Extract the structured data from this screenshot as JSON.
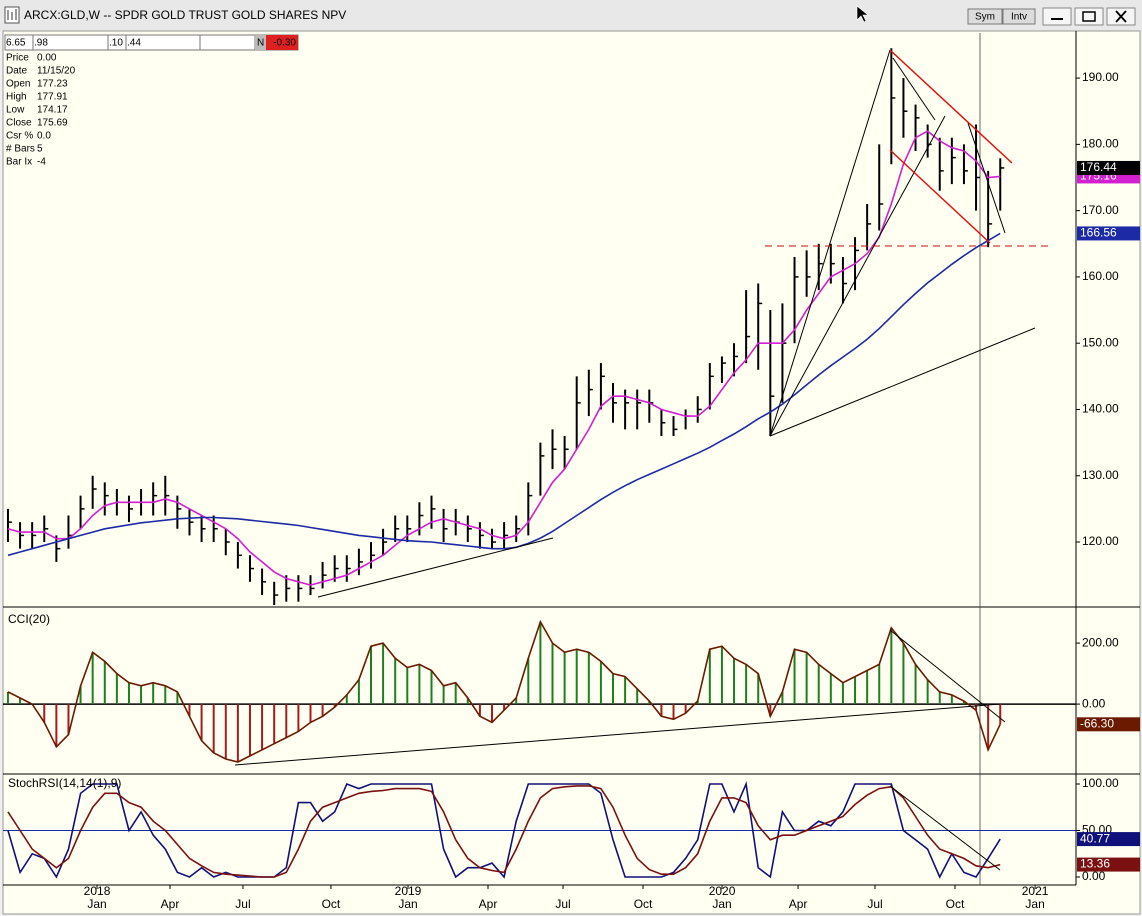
{
  "window": {
    "buttons": [
      "Sym",
      "Intv"
    ]
  },
  "data_box": {
    "cells": [
      "6.65",
      ".98",
      ".10",
      ".44"
    ],
    "flag": "N",
    "change": "-0.30",
    "rows": [
      [
        "Price",
        "0.00"
      ],
      [
        "Date",
        "11/15/20"
      ],
      [
        "Open",
        "177.23"
      ],
      [
        "High",
        "177.91"
      ],
      [
        "Low",
        "174.17"
      ],
      [
        "Close",
        "175.69"
      ],
      [
        "Csr %",
        "0.0"
      ],
      [
        "# Bars",
        "5"
      ],
      [
        "Bar Ix",
        "-4"
      ]
    ]
  },
  "chart_data": [
    {
      "type": "ohlc",
      "title": "ARCX:GLD,W -- SPDR GOLD TRUST GOLD SHARES NPV",
      "color": "#000000",
      "high": [
        125,
        123,
        123,
        124,
        121,
        124,
        127,
        130,
        129,
        128,
        127,
        128,
        129,
        130,
        127,
        125,
        124,
        124,
        122,
        120,
        118,
        116,
        114,
        115,
        115,
        115,
        117,
        118,
        118,
        119,
        120,
        122,
        124,
        124,
        126,
        127,
        125,
        125,
        124,
        123,
        122,
        123,
        124,
        129,
        135,
        137,
        136,
        145,
        146,
        147,
        144,
        143,
        143,
        143,
        140,
        139,
        140,
        142,
        147,
        148,
        150,
        158,
        159,
        155,
        156,
        163,
        164,
        165,
        165,
        163,
        166,
        171,
        180,
        194.5,
        190,
        186,
        183,
        181,
        181,
        180,
        183,
        176,
        177.9
      ],
      "low": [
        120,
        119,
        119,
        120,
        117,
        119,
        122,
        125,
        124,
        124,
        123,
        124,
        124,
        124,
        122,
        121,
        120,
        120,
        118,
        116,
        114,
        112,
        110.5,
        111,
        111,
        112,
        113,
        114,
        114,
        115,
        116,
        118,
        120,
        120,
        121,
        122,
        120,
        121,
        120,
        119,
        119,
        119,
        120,
        121,
        127,
        131,
        131,
        134,
        139,
        140,
        138,
        137,
        137,
        138,
        136,
        136,
        137,
        138,
        140,
        144,
        145,
        147,
        146,
        136,
        141,
        150,
        157,
        158,
        159,
        156,
        158,
        164,
        167,
        177,
        181,
        179,
        178,
        173,
        174,
        174,
        170,
        164.5,
        170
      ],
      "close": [
        123,
        121,
        121,
        122,
        119,
        121,
        125,
        128,
        127,
        126,
        125,
        126,
        127,
        127,
        125,
        123,
        122,
        122,
        120,
        118,
        116,
        114,
        112,
        113,
        113,
        113,
        115,
        116,
        116,
        117,
        118,
        120,
        122,
        122,
        124,
        125,
        122,
        123,
        122,
        121,
        120,
        121,
        122,
        127,
        133,
        134,
        134,
        141,
        143,
        145,
        141,
        141,
        141,
        141,
        138,
        137,
        139,
        140,
        145,
        147,
        148,
        151,
        156,
        142,
        150,
        160,
        160,
        162,
        162,
        159,
        164,
        168,
        171,
        187,
        185,
        184,
        180,
        176,
        178,
        176,
        175,
        168,
        176.44
      ],
      "lines": [
        {
          "color": "#d21fd2",
          "values": [
            122,
            121.5,
            121.5,
            121.5,
            120.5,
            120.5,
            122,
            124,
            125.5,
            126,
            126,
            126,
            126,
            126.5,
            126,
            125,
            124,
            123,
            122,
            120.5,
            118.5,
            117,
            115.5,
            114.5,
            114,
            113.5,
            114,
            114.5,
            115,
            116,
            117,
            118,
            119.5,
            121,
            122,
            123,
            123.5,
            123,
            122.5,
            122,
            121,
            120.5,
            121,
            123,
            126,
            129,
            131,
            134,
            137,
            140.5,
            142,
            142,
            141.5,
            141,
            140,
            139.5,
            139,
            139,
            140.5,
            143,
            145.5,
            147.5,
            150,
            150,
            150,
            152,
            155,
            157.5,
            160,
            161,
            162,
            163.5,
            166,
            171,
            177,
            181,
            182,
            180.5,
            179.5,
            179,
            177.5,
            175,
            175.16
          ]
        },
        {
          "color": "#1c2aa6",
          "values": [
            118,
            118.5,
            119,
            119.5,
            120,
            120.5,
            121,
            121.5,
            122,
            122.3,
            122.6,
            122.9,
            123.1,
            123.3,
            123.5,
            123.6,
            123.7,
            123.7,
            123.6,
            123.5,
            123.3,
            123.1,
            122.9,
            122.7,
            122.5,
            122.2,
            121.9,
            121.6,
            121.3,
            121,
            120.8,
            120.6,
            120.4,
            120.2,
            120.1,
            120,
            119.8,
            119.6,
            119.4,
            119.2,
            119,
            119,
            119.2,
            119.8,
            120.6,
            121.6,
            122.8,
            124,
            125.2,
            126.4,
            127.5,
            128.5,
            129.4,
            130.2,
            131,
            131.8,
            132.6,
            133.4,
            134.3,
            135.3,
            136.3,
            137.4,
            138.6,
            139.6,
            140.8,
            142.2,
            143.7,
            145.2,
            146.6,
            147.9,
            149.2,
            150.6,
            152.2,
            154,
            155.8,
            157.5,
            159.1,
            160.5,
            161.9,
            163.2,
            164.4,
            165.5,
            166.56
          ]
        }
      ],
      "ylim": [
        110.5,
        196.8
      ],
      "yticks": [
        {
          "value": 120,
          "label": "120.00"
        },
        {
          "value": 130,
          "label": "130.00"
        },
        {
          "value": 140,
          "label": "140.00"
        },
        {
          "value": 150,
          "label": "150.00"
        },
        {
          "value": 160,
          "label": "160.00"
        },
        {
          "value": 170,
          "label": "170.00"
        },
        {
          "value": 180,
          "label": "180.00"
        },
        {
          "value": 190,
          "label": "190.00"
        }
      ]
    },
    {
      "type": "histogram_line",
      "title": "CCI(20)",
      "positive_color": "#1f7f1f",
      "negative_color": "#a51c1c",
      "line_color": "#6b1a00",
      "values": [
        40,
        20,
        0,
        -60,
        -140,
        -100,
        60,
        170,
        140,
        100,
        70,
        60,
        70,
        60,
        40,
        -40,
        -120,
        -160,
        -180,
        -190,
        -170,
        -150,
        -130,
        -110,
        -90,
        -60,
        -40,
        -10,
        30,
        80,
        190,
        200,
        150,
        120,
        130,
        110,
        60,
        70,
        20,
        -40,
        -60,
        -20,
        20,
        150,
        270,
        200,
        170,
        180,
        170,
        140,
        100,
        90,
        50,
        10,
        -40,
        -50,
        -30,
        10,
        180,
        190,
        150,
        130,
        100,
        -40,
        40,
        180,
        170,
        130,
        100,
        70,
        90,
        110,
        130,
        250,
        200,
        130,
        80,
        40,
        30,
        10,
        -20,
        -150,
        -66.3
      ],
      "last_value_label": "-66.30",
      "ylim": [
        -226,
        302
      ],
      "yticks": [
        {
          "value": 0,
          "label": "0.00"
        },
        {
          "value": 200,
          "label": "200.00"
        }
      ],
      "zero_line_color": "#000000"
    },
    {
      "type": "line",
      "title": "StochRSI(14,14(1),9)",
      "series": [
        {
          "color": "#10107a",
          "values": [
            50,
            5,
            25,
            20,
            0,
            30,
            90,
            100,
            100,
            100,
            50,
            70,
            45,
            30,
            5,
            0,
            10,
            0,
            5,
            0,
            0,
            0,
            0,
            10,
            80,
            80,
            60,
            70,
            100,
            95,
            100,
            100,
            100,
            100,
            100,
            100,
            30,
            0,
            10,
            10,
            15,
            0,
            60,
            100,
            100,
            100,
            100,
            100,
            100,
            90,
            40,
            0,
            0,
            0,
            0,
            5,
            20,
            40,
            100,
            100,
            70,
            100,
            10,
            0,
            70,
            50,
            50,
            60,
            55,
            70,
            100,
            100,
            100,
            100,
            50,
            40,
            30,
            0,
            25,
            5,
            0,
            20,
            40.77
          ]
        },
        {
          "color": "#7a1010",
          "values": [
            70,
            50,
            30,
            20,
            10,
            20,
            50,
            75,
            90,
            90,
            80,
            75,
            60,
            50,
            35,
            20,
            12,
            5,
            3,
            2,
            1,
            0,
            0,
            5,
            30,
            60,
            75,
            80,
            85,
            90,
            92,
            93,
            95,
            95,
            95,
            92,
            70,
            40,
            20,
            10,
            7,
            5,
            30,
            60,
            85,
            95,
            97,
            98,
            98,
            95,
            75,
            45,
            20,
            8,
            3,
            3,
            10,
            25,
            60,
            85,
            85,
            80,
            55,
            40,
            45,
            45,
            50,
            55,
            60,
            65,
            78,
            88,
            95,
            97,
            85,
            65,
            45,
            30,
            25,
            20,
            12,
            10,
            13.36
          ]
        }
      ],
      "ylim": [
        -8.6,
        108.6
      ],
      "yticks": [
        {
          "value": 0,
          "label": "0.00"
        },
        {
          "value": 50,
          "label": "50.00"
        },
        {
          "value": 100,
          "label": "100.00"
        }
      ],
      "mid_line_color": "#1c2aa6",
      "xlim": [
        -0.41,
        88.26
      ],
      "xticks": [
        {
          "value": 7.36,
          "label": "Jan"
        },
        {
          "value": 13.39,
          "label": "Apr"
        },
        {
          "value": 19.42,
          "label": "Jul"
        },
        {
          "value": 26.69,
          "label": "Oct"
        },
        {
          "value": 33.06,
          "label": "Jan"
        },
        {
          "value": 39.67,
          "label": "Apr"
        },
        {
          "value": 45.87,
          "label": "Jul"
        },
        {
          "value": 52.48,
          "label": "Oct"
        },
        {
          "value": 59.01,
          "label": "Jan"
        },
        {
          "value": 65.29,
          "label": "Apr"
        },
        {
          "value": 71.65,
          "label": "Jul"
        },
        {
          "value": 78.26,
          "label": "Oct"
        },
        {
          "value": 84.88,
          "label": "Jan"
        }
      ],
      "year_ticks": [
        {
          "value": 7.36,
          "label": "2018"
        },
        {
          "value": 33.06,
          "label": "2019"
        },
        {
          "value": 59.01,
          "label": "2020"
        },
        {
          "value": 84.88,
          "label": "2021"
        }
      ]
    }
  ]
}
